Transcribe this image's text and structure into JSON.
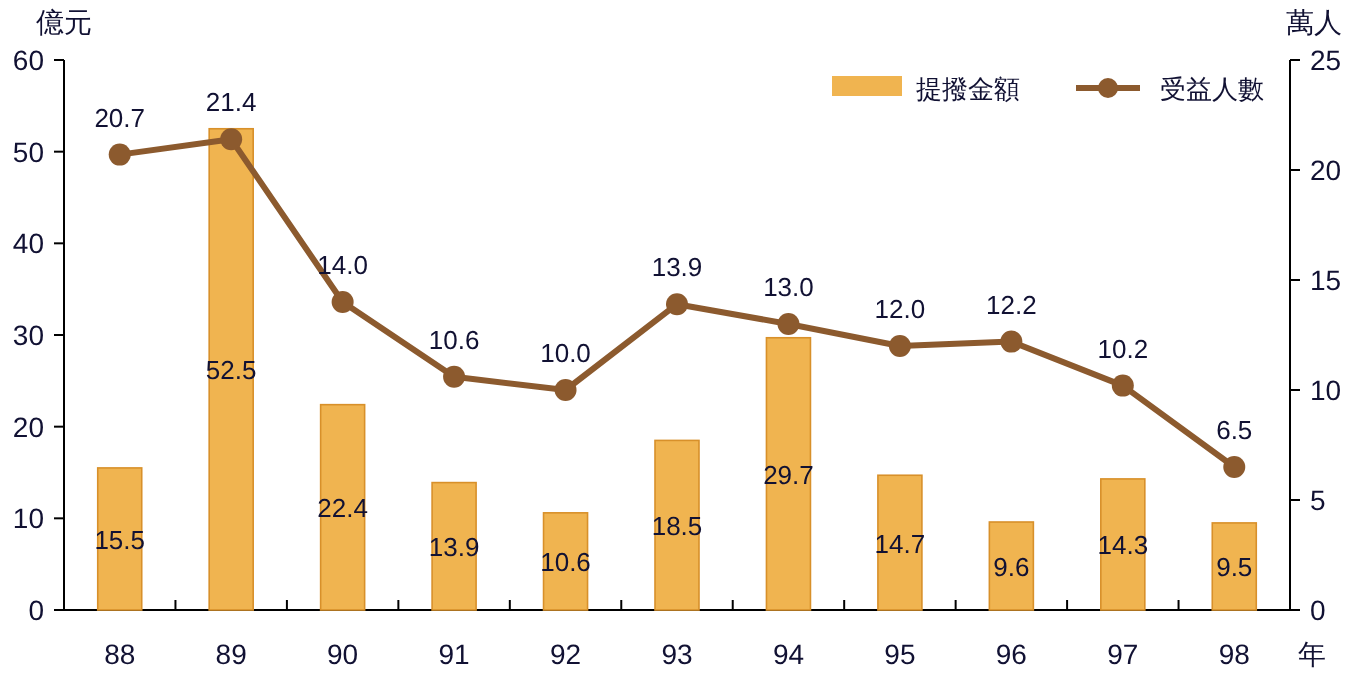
{
  "chart_data": {
    "type": "bar",
    "xlabel": "年",
    "ylabel": "億元",
    "y2label": "萬人",
    "categories": [
      "88",
      "89",
      "90",
      "91",
      "92",
      "93",
      "94",
      "95",
      "96",
      "97",
      "98"
    ],
    "series": [
      {
        "name": "提撥金額",
        "color": "#f0b450",
        "values": [
          15.5,
          52.5,
          22.4,
          13.9,
          10.6,
          18.5,
          29.7,
          14.7,
          9.6,
          14.3,
          9.5
        ],
        "value_labels": [
          "15.5",
          "52.5",
          "22.4",
          "13.9",
          "10.6",
          "18.5",
          "29.7",
          "14.7",
          "9.6",
          "14.3",
          "9.5"
        ]
      },
      {
        "name": "受益人數",
        "type": "line",
        "axis": "y2",
        "color": "#8c5a2e",
        "marker": "circle",
        "values": [
          20.7,
          21.4,
          14.0,
          10.6,
          10.0,
          13.9,
          13.0,
          12.0,
          12.2,
          10.2,
          6.5
        ],
        "value_labels": [
          "20.7",
          "21.4",
          "14.0",
          "10.6",
          "10.0",
          "13.9",
          "13.0",
          "12.0",
          "12.2",
          "10.2",
          "6.5"
        ]
      }
    ],
    "ylim": [
      0,
      60
    ],
    "yticks": [
      0,
      10,
      20,
      30,
      40,
      50,
      60
    ],
    "y2lim": [
      0,
      25
    ],
    "y2ticks": [
      0,
      5,
      10,
      15,
      20,
      25
    ],
    "legend": "top right"
  }
}
